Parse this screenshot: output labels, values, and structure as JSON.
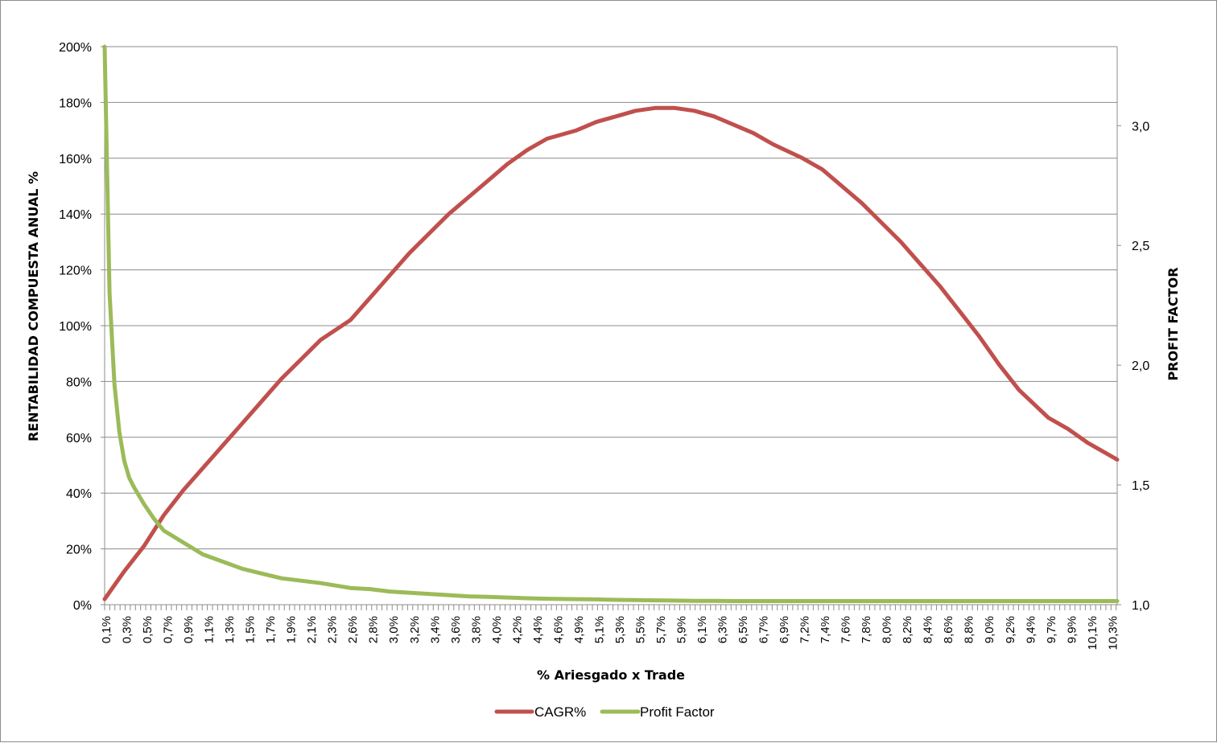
{
  "chart_data": {
    "type": "line",
    "xlabel": "% Ariesgado x Trade",
    "ylabel": "RENTABILIDAD COMPUESTA ANUAL %",
    "y2label": "PROFIT FACTOR",
    "ylim": [
      0,
      200
    ],
    "y2lim": [
      1.0,
      3.33
    ],
    "yticks": [
      "0%",
      "20%",
      "40%",
      "60%",
      "80%",
      "100%",
      "120%",
      "140%",
      "160%",
      "180%",
      "200%"
    ],
    "y2ticks": [
      "1,0",
      "1,5",
      "2,0",
      "2,5",
      "3,0"
    ],
    "x_tick_labels": [
      "0,1%",
      "0,3%",
      "0,5%",
      "0,7%",
      "0,9%",
      "1,1%",
      "1,3%",
      "1,5%",
      "1,7%",
      "1,9%",
      "2,1%",
      "2,3%",
      "2,6%",
      "2,8%",
      "3,0%",
      "3,2%",
      "3,4%",
      "3,6%",
      "3,8%",
      "4,0%",
      "4,2%",
      "4,4%",
      "4,6%",
      "4,9%",
      "5,1%",
      "5,3%",
      "5,5%",
      "5,7%",
      "5,9%",
      "6,1%",
      "6,3%",
      "6,5%",
      "6,7%",
      "6,9%",
      "7,2%",
      "7,4%",
      "7,6%",
      "7,8%",
      "8,0%",
      "8,2%",
      "8,4%",
      "8,6%",
      "8,8%",
      "9,0%",
      "9,2%",
      "9,4%",
      "9,7%",
      "9,9%",
      "10,1%",
      "10,3%"
    ],
    "grid": true,
    "legend": "bottom",
    "series": [
      {
        "name": "CAGR%",
        "axis": "left",
        "color": "#c0504d",
        "x": [
          0.1,
          0.3,
          0.5,
          0.7,
          0.9,
          1.1,
          1.3,
          1.5,
          1.7,
          1.9,
          2.1,
          2.3,
          2.6,
          2.8,
          3.0,
          3.2,
          3.4,
          3.6,
          3.8,
          4.0,
          4.2,
          4.4,
          4.6,
          4.9,
          5.1,
          5.3,
          5.5,
          5.7,
          5.9,
          6.1,
          6.3,
          6.5,
          6.7,
          6.9,
          7.2,
          7.4,
          7.6,
          7.8,
          8.0,
          8.2,
          8.4,
          8.6,
          8.8,
          9.0,
          9.2,
          9.4,
          9.7,
          9.9,
          10.1,
          10.3,
          10.4
        ],
        "values": [
          2,
          12,
          21,
          32,
          41,
          49,
          57,
          65,
          73,
          81,
          88,
          95,
          102,
          110,
          118,
          126,
          133,
          140,
          146,
          152,
          158,
          163,
          167,
          170,
          173,
          175,
          177,
          178,
          178,
          177,
          175,
          172,
          169,
          165,
          160,
          156,
          150,
          144,
          137,
          130,
          122,
          114,
          105,
          96,
          86,
          77,
          67,
          63,
          58,
          54,
          52
        ]
      },
      {
        "name": "Profit Factor",
        "axis": "right",
        "color": "#9bbb59",
        "x": [
          0.1,
          0.15,
          0.2,
          0.25,
          0.3,
          0.35,
          0.4,
          0.5,
          0.6,
          0.7,
          0.9,
          1.1,
          1.3,
          1.5,
          1.7,
          1.9,
          2.1,
          2.3,
          2.6,
          2.8,
          3.0,
          3.2,
          3.4,
          3.6,
          3.8,
          4.0,
          4.2,
          4.4,
          4.6,
          4.9,
          5.1,
          5.3,
          5.5,
          5.7,
          5.9,
          6.1,
          6.3,
          6.5,
          6.7,
          6.9,
          7.2,
          7.4,
          7.6,
          7.8,
          8.0,
          8.2,
          8.4,
          8.6,
          8.8,
          9.0,
          9.2,
          9.4,
          9.7,
          9.9,
          10.1,
          10.3,
          10.4
        ],
        "values": [
          3.33,
          2.3,
          1.92,
          1.72,
          1.6,
          1.53,
          1.49,
          1.42,
          1.36,
          1.31,
          1.26,
          1.21,
          1.18,
          1.15,
          1.13,
          1.11,
          1.1,
          1.09,
          1.07,
          1.065,
          1.055,
          1.05,
          1.045,
          1.04,
          1.035,
          1.033,
          1.03,
          1.027,
          1.025,
          1.023,
          1.022,
          1.02,
          1.019,
          1.018,
          1.017,
          1.016,
          1.016,
          1.015,
          1.015,
          1.015,
          1.015,
          1.015,
          1.015,
          1.015,
          1.015,
          1.015,
          1.015,
          1.015,
          1.015,
          1.015,
          1.015,
          1.015,
          1.015,
          1.015,
          1.015,
          1.015,
          1.015
        ]
      }
    ]
  }
}
